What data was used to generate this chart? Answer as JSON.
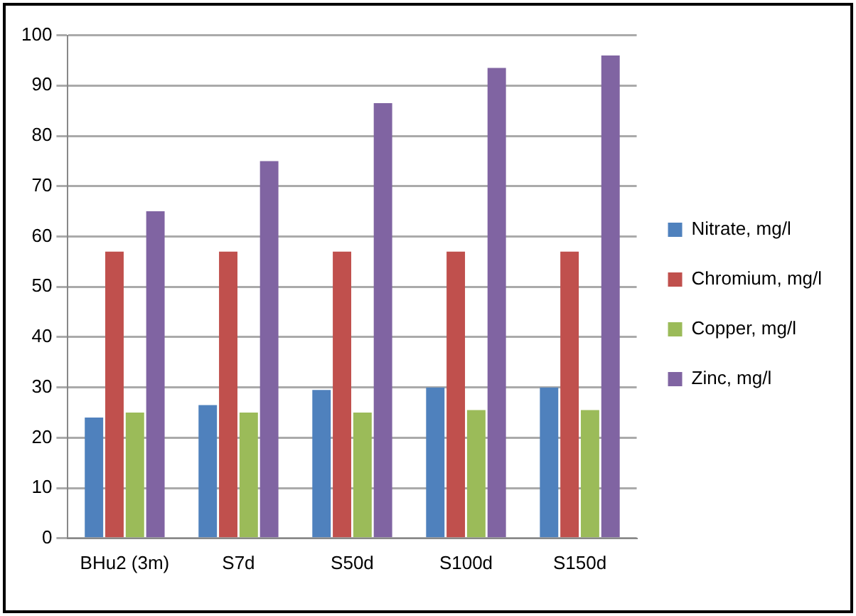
{
  "chart_data": {
    "type": "bar",
    "categories": [
      "BHu2 (3m)",
      "S7d",
      "S50d",
      "S100d",
      "S150d"
    ],
    "series": [
      {
        "name": "Nitrate, mg/l",
        "color": "#4f81bd",
        "values": [
          24,
          26.5,
          29.5,
          30,
          30
        ]
      },
      {
        "name": "Chromium, mg/l",
        "color": "#c0504d",
        "values": [
          57,
          57,
          57,
          57,
          57
        ]
      },
      {
        "name": "Copper, mg/l",
        "color": "#9bbb59",
        "values": [
          25,
          25,
          25,
          25.5,
          25.5
        ]
      },
      {
        "name": "Zinc, mg/l",
        "color": "#8064a2",
        "values": [
          65,
          75,
          86.5,
          93.5,
          96
        ]
      }
    ],
    "ylim": [
      0,
      100
    ],
    "yticks": [
      0,
      10,
      20,
      30,
      40,
      50,
      60,
      70,
      80,
      90,
      100
    ],
    "grid": "y",
    "legend": "right"
  }
}
